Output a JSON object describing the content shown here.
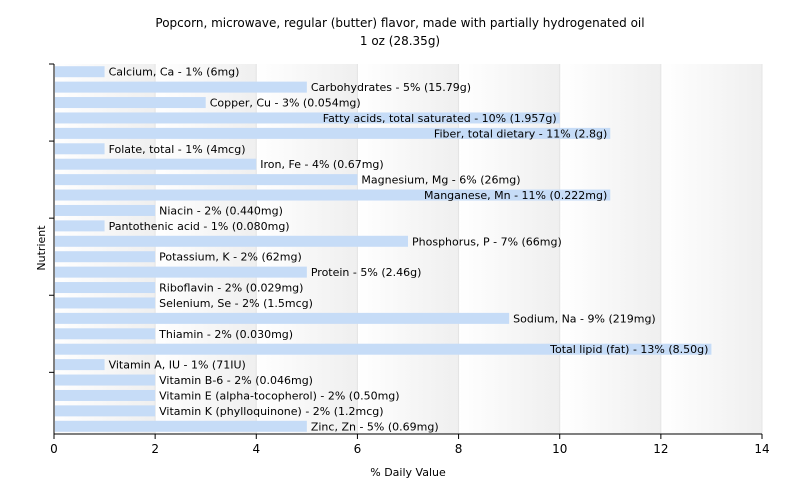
{
  "chart_data": {
    "type": "bar",
    "orientation": "horizontal",
    "title": "Popcorn, microwave, regular (butter) flavor, made with partially hydrogenated oil",
    "subtitle": "1 oz (28.35g)",
    "xlabel": "% Daily Value",
    "ylabel": "Nutrient",
    "xlim": [
      0,
      14
    ],
    "xticks": [
      0,
      2,
      4,
      6,
      8,
      10,
      12,
      14
    ],
    "grid": true,
    "colors": {
      "bar": "#c6dcf7",
      "grid_band": "#f1f1f1"
    },
    "categories": [
      "Calcium, Ca",
      "Carbohydrates",
      "Copper, Cu",
      "Fatty acids, total saturated",
      "Fiber, total dietary",
      "Folate, total",
      "Iron, Fe",
      "Magnesium, Mg",
      "Manganese, Mn",
      "Niacin",
      "Pantothenic acid",
      "Phosphorus, P",
      "Potassium, K",
      "Protein",
      "Riboflavin",
      "Selenium, Se",
      "Sodium, Na",
      "Thiamin",
      "Total lipid (fat)",
      "Vitamin A, IU",
      "Vitamin B-6",
      "Vitamin E (alpha-tocopherol)",
      "Vitamin K (phylloquinone)",
      "Zinc, Zn"
    ],
    "values": [
      1,
      5,
      3,
      10,
      11,
      1,
      4,
      6,
      11,
      2,
      1,
      7,
      2,
      5,
      2,
      2,
      9,
      2,
      13,
      1,
      2,
      2,
      2,
      5
    ],
    "labels": [
      "Calcium, Ca - 1% (6mg)",
      "Carbohydrates - 5% (15.79g)",
      "Copper, Cu - 3% (0.054mg)",
      "Fatty acids, total saturated - 10% (1.957g)",
      "Fiber, total dietary - 11% (2.8g)",
      "Folate, total - 1% (4mcg)",
      "Iron, Fe - 4% (0.67mg)",
      "Magnesium, Mg - 6% (26mg)",
      "Manganese, Mn - 11% (0.222mg)",
      "Niacin - 2% (0.440mg)",
      "Pantothenic acid - 1% (0.080mg)",
      "Phosphorus, P - 7% (66mg)",
      "Potassium, K - 2% (62mg)",
      "Protein - 5% (2.46g)",
      "Riboflavin - 2% (0.029mg)",
      "Selenium, Se - 2% (1.5mcg)",
      "Sodium, Na - 9% (219mg)",
      "Thiamin - 2% (0.030mg)",
      "Total lipid (fat) - 13% (8.50g)",
      "Vitamin A, IU - 1% (71IU)",
      "Vitamin B-6 - 2% (0.046mg)",
      "Vitamin E (alpha-tocopherol) - 2% (0.50mg)",
      "Vitamin K (phylloquinone) - 2% (1.2mcg)",
      "Zinc, Zn - 5% (0.69mg)"
    ]
  }
}
